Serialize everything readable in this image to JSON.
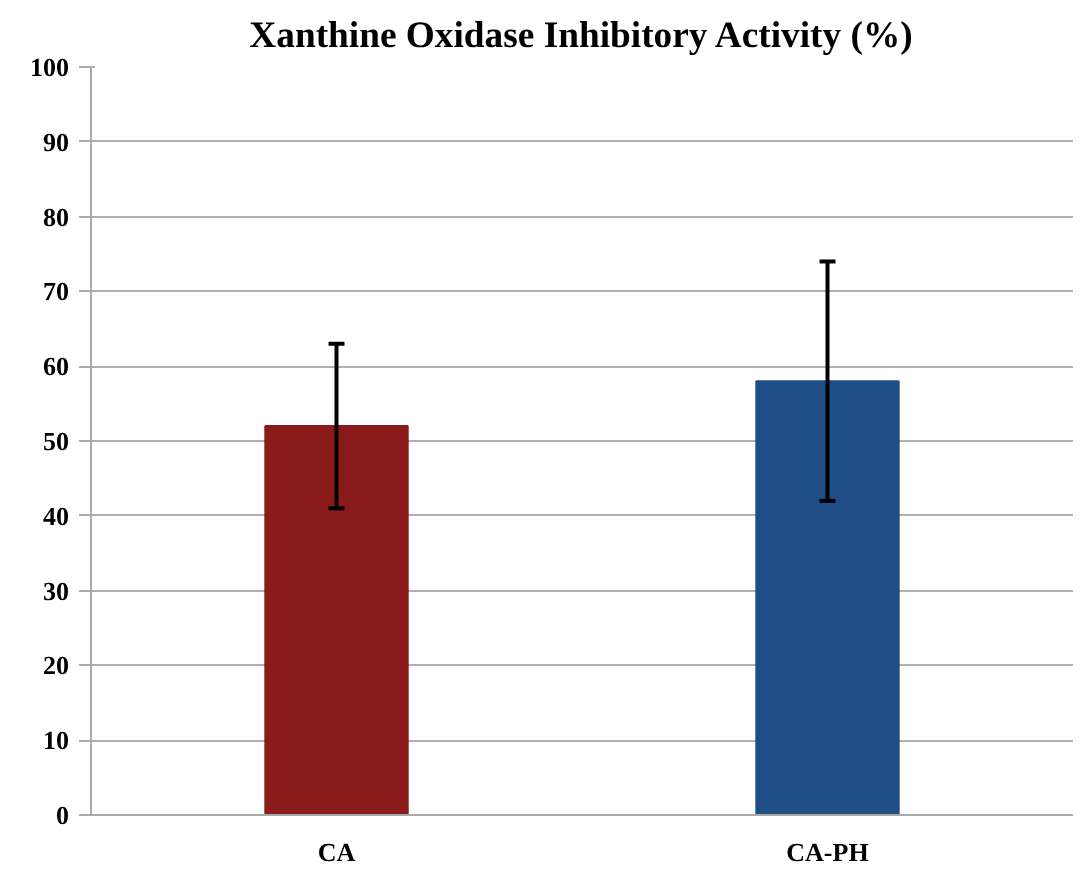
{
  "chart_data": {
    "type": "bar",
    "title": "Xanthine Oxidase Inhibitory Activity (%)",
    "categories": [
      "CA",
      "CA-PH"
    ],
    "values": [
      52,
      58
    ],
    "colors": [
      "#8b1a1a",
      "#1f4e87"
    ],
    "errors": [
      11,
      16
    ],
    "ylim": [
      0,
      100
    ],
    "yticks": [
      0,
      10,
      20,
      30,
      40,
      50,
      60,
      70,
      80,
      90,
      100
    ],
    "grid": "y"
  }
}
